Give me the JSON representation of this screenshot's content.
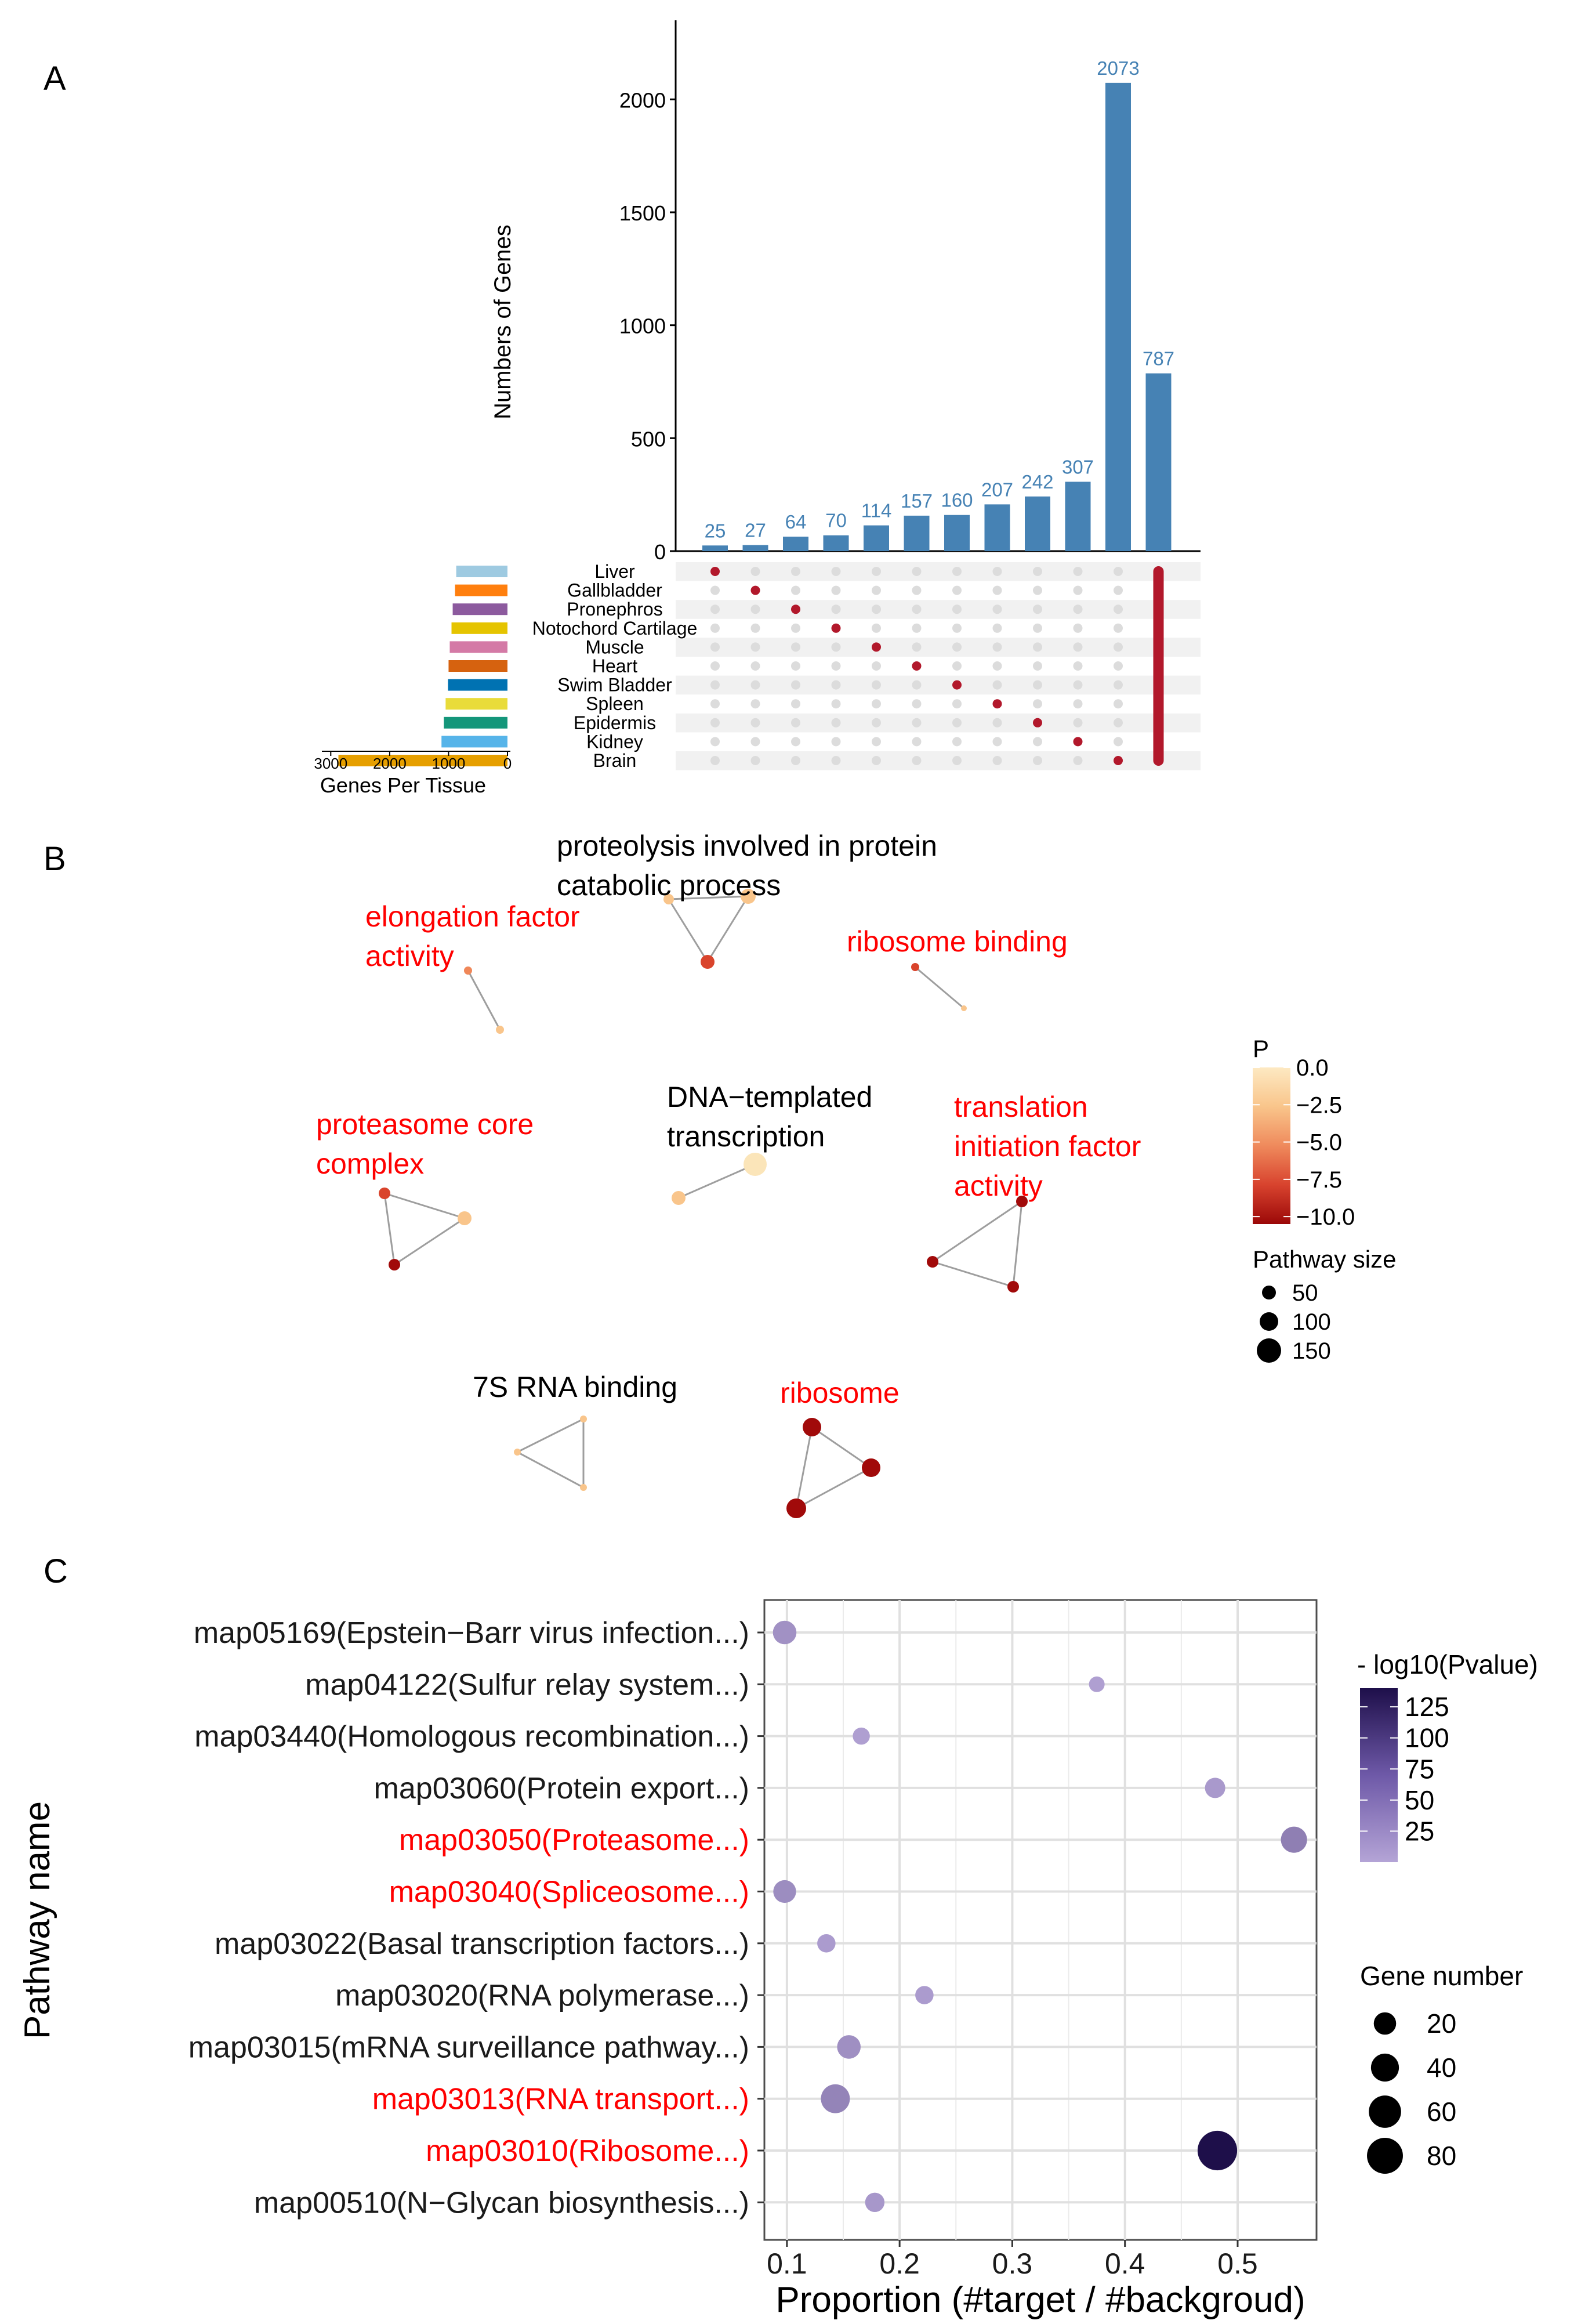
{
  "panels": {
    "A": {
      "label": "A",
      "chart_data": {
        "type": "bar",
        "ylabel": "Numbers of Genes",
        "ylim": [
          0,
          2350
        ],
        "yticks": [
          0,
          500,
          1000,
          1500,
          2000
        ],
        "bar_color": "#4682b4",
        "values": [
          25,
          27,
          64,
          70,
          114,
          157,
          160,
          207,
          242,
          307,
          2073,
          787
        ],
        "label_color": "#4682b4"
      },
      "matrix": {
        "tissues": [
          "Liver",
          "Gallbladder",
          "Pronephros",
          "Notochord Cartilage",
          "Muscle",
          "Heart",
          "Swim Bladder",
          "Spleen",
          "Epidermis",
          "Kidney",
          "Brain"
        ],
        "active_row_per_column": [
          0,
          1,
          2,
          3,
          4,
          5,
          6,
          7,
          8,
          9,
          10,
          "all"
        ],
        "dot_active_color": "#b2182b",
        "dot_inactive_color": "#dcdcdc"
      },
      "set_size": {
        "xlabel": "Genes Per Tissue",
        "xticks": [
          3000,
          2000,
          1000,
          0
        ],
        "xlim": [
          0,
          3200
        ],
        "values": [
          870,
          890,
          930,
          950,
          980,
          1000,
          1010,
          1050,
          1080,
          1120,
          2870
        ],
        "colors": [
          "#9ecae1",
          "#ff7f0e",
          "#8c5a9e",
          "#e5c400",
          "#d47aa6",
          "#d6620f",
          "#0072b2",
          "#e9dc3a",
          "#14967a",
          "#56b4e9",
          "#e69f00"
        ]
      }
    },
    "B": {
      "label": "B",
      "chart_data": {
        "type": "network",
        "legend_color": {
          "title": "P",
          "ticks": [
            "0.0",
            "−2.5",
            "−5.0",
            "−7.5",
            "−10.0"
          ],
          "range": [
            0,
            -10.5
          ],
          "colors": [
            "#fbe5b9",
            "#f9c58b",
            "#f08758",
            "#d9442c",
            "#a10a0a"
          ]
        },
        "legend_size": {
          "title": "Pathway size",
          "items": [
            "50",
            "100",
            "150"
          ]
        },
        "clusters": [
          {
            "name": "proteolysis involved in protein catabolic process",
            "line1": "proteolysis involved in protein",
            "line2": "catabolic process",
            "highlight": false
          },
          {
            "name": "elongation factor activity",
            "line1": "elongation factor",
            "line2": "activity",
            "highlight": true
          },
          {
            "name": "ribosome binding",
            "line1": "ribosome binding",
            "highlight": true
          },
          {
            "name": "DNA-templated transcription",
            "line1": "DNA−templated",
            "line2": "transcription",
            "highlight": false
          },
          {
            "name": "proteasome core complex",
            "line1": "proteasome core",
            "line2": "complex",
            "highlight": true
          },
          {
            "name": "translation initiation factor activity",
            "line1": "translation",
            "line2": "initiation factor",
            "line3": "activity",
            "highlight": true
          },
          {
            "name": "7S RNA binding",
            "line1": "7S RNA binding",
            "highlight": false
          },
          {
            "name": "ribosome",
            "line1": "ribosome",
            "highlight": true
          }
        ],
        "highlight_color": "#ff0000"
      }
    },
    "C": {
      "label": "C",
      "chart_data": {
        "type": "scatter",
        "xlabel": "Proportion (#target / #backgroud)",
        "ylabel": "Pathway name",
        "xlim": [
          0.08,
          0.57
        ],
        "xticks": [
          0.1,
          0.2,
          0.3,
          0.4,
          0.5
        ],
        "xtick_labels": [
          "0.1",
          "0.2",
          "0.3",
          "0.4",
          "0.5"
        ],
        "categories": [
          "map05169(Epstein−Barr virus infection...)",
          "map04122(Sulfur relay system...)",
          "map03440(Homologous recombination...)",
          "map03060(Protein export...)",
          "map03050(Proteasome...)",
          "map03040(Spliceosome...)",
          "map03022(Basal transcription factors...)",
          "map03020(RNA polymerase...)",
          "map03015(mRNA surveillance pathway...)",
          "map03013(RNA transport...)",
          "map03010(Ribosome...)",
          "map00510(N−Glycan biosynthesis...)"
        ],
        "highlighted": [
          false,
          false,
          false,
          false,
          true,
          true,
          false,
          false,
          false,
          true,
          true,
          false
        ],
        "x": [
          0.098,
          0.375,
          0.166,
          0.48,
          0.55,
          0.098,
          0.135,
          0.222,
          0.155,
          0.143,
          0.482,
          0.178
        ],
        "pvalue": [
          18,
          5,
          5,
          10,
          35,
          22,
          8,
          8,
          20,
          30,
          140,
          12
        ],
        "gene_number": [
          20,
          4,
          6,
          12,
          28,
          18,
          8,
          8,
          20,
          38,
          90,
          10
        ],
        "legend_color": {
          "title": "- log10(Pvalue)",
          "ticks": [
            125,
            100,
            75,
            50,
            25
          ],
          "range": [
            0,
            140
          ],
          "low": "#b4a4d6",
          "high": "#1e0f4a"
        },
        "legend_size": {
          "title": "Gene number",
          "items": [
            20,
            40,
            60,
            80
          ]
        },
        "highlight_color": "#ff0000"
      }
    }
  }
}
